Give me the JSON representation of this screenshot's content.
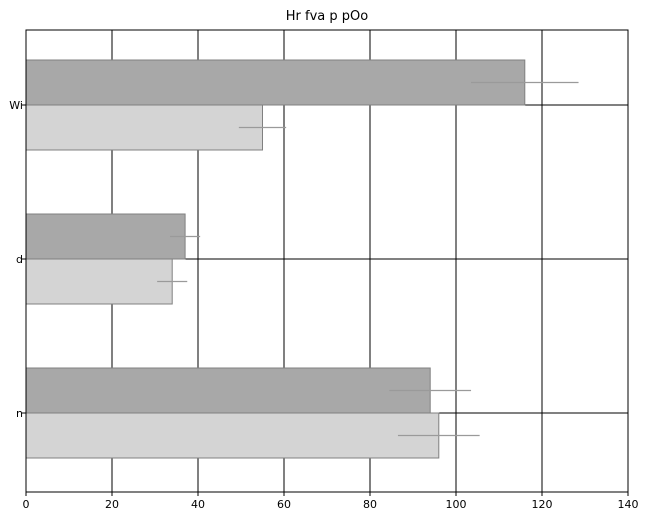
{
  "chart_data": {
    "type": "bar",
    "orientation": "horizontal",
    "title": "Hr fva p pOo",
    "xlabel": "",
    "ylabel": "",
    "xlim": [
      0,
      140
    ],
    "x_ticks": [
      0,
      20,
      40,
      60,
      80,
      100,
      120,
      140
    ],
    "categories": [
      "Wi",
      "d",
      "n"
    ],
    "grid": true,
    "legend": "none",
    "series": [
      {
        "color": "#a8a8a8",
        "values": [
          116,
          37,
          94
        ],
        "error": [
          12.5,
          3.5,
          9.5
        ]
      },
      {
        "color": "#d4d4d4",
        "values": [
          55,
          34,
          96
        ],
        "error": [
          5.5,
          3.5,
          9.5
        ]
      }
    ]
  }
}
